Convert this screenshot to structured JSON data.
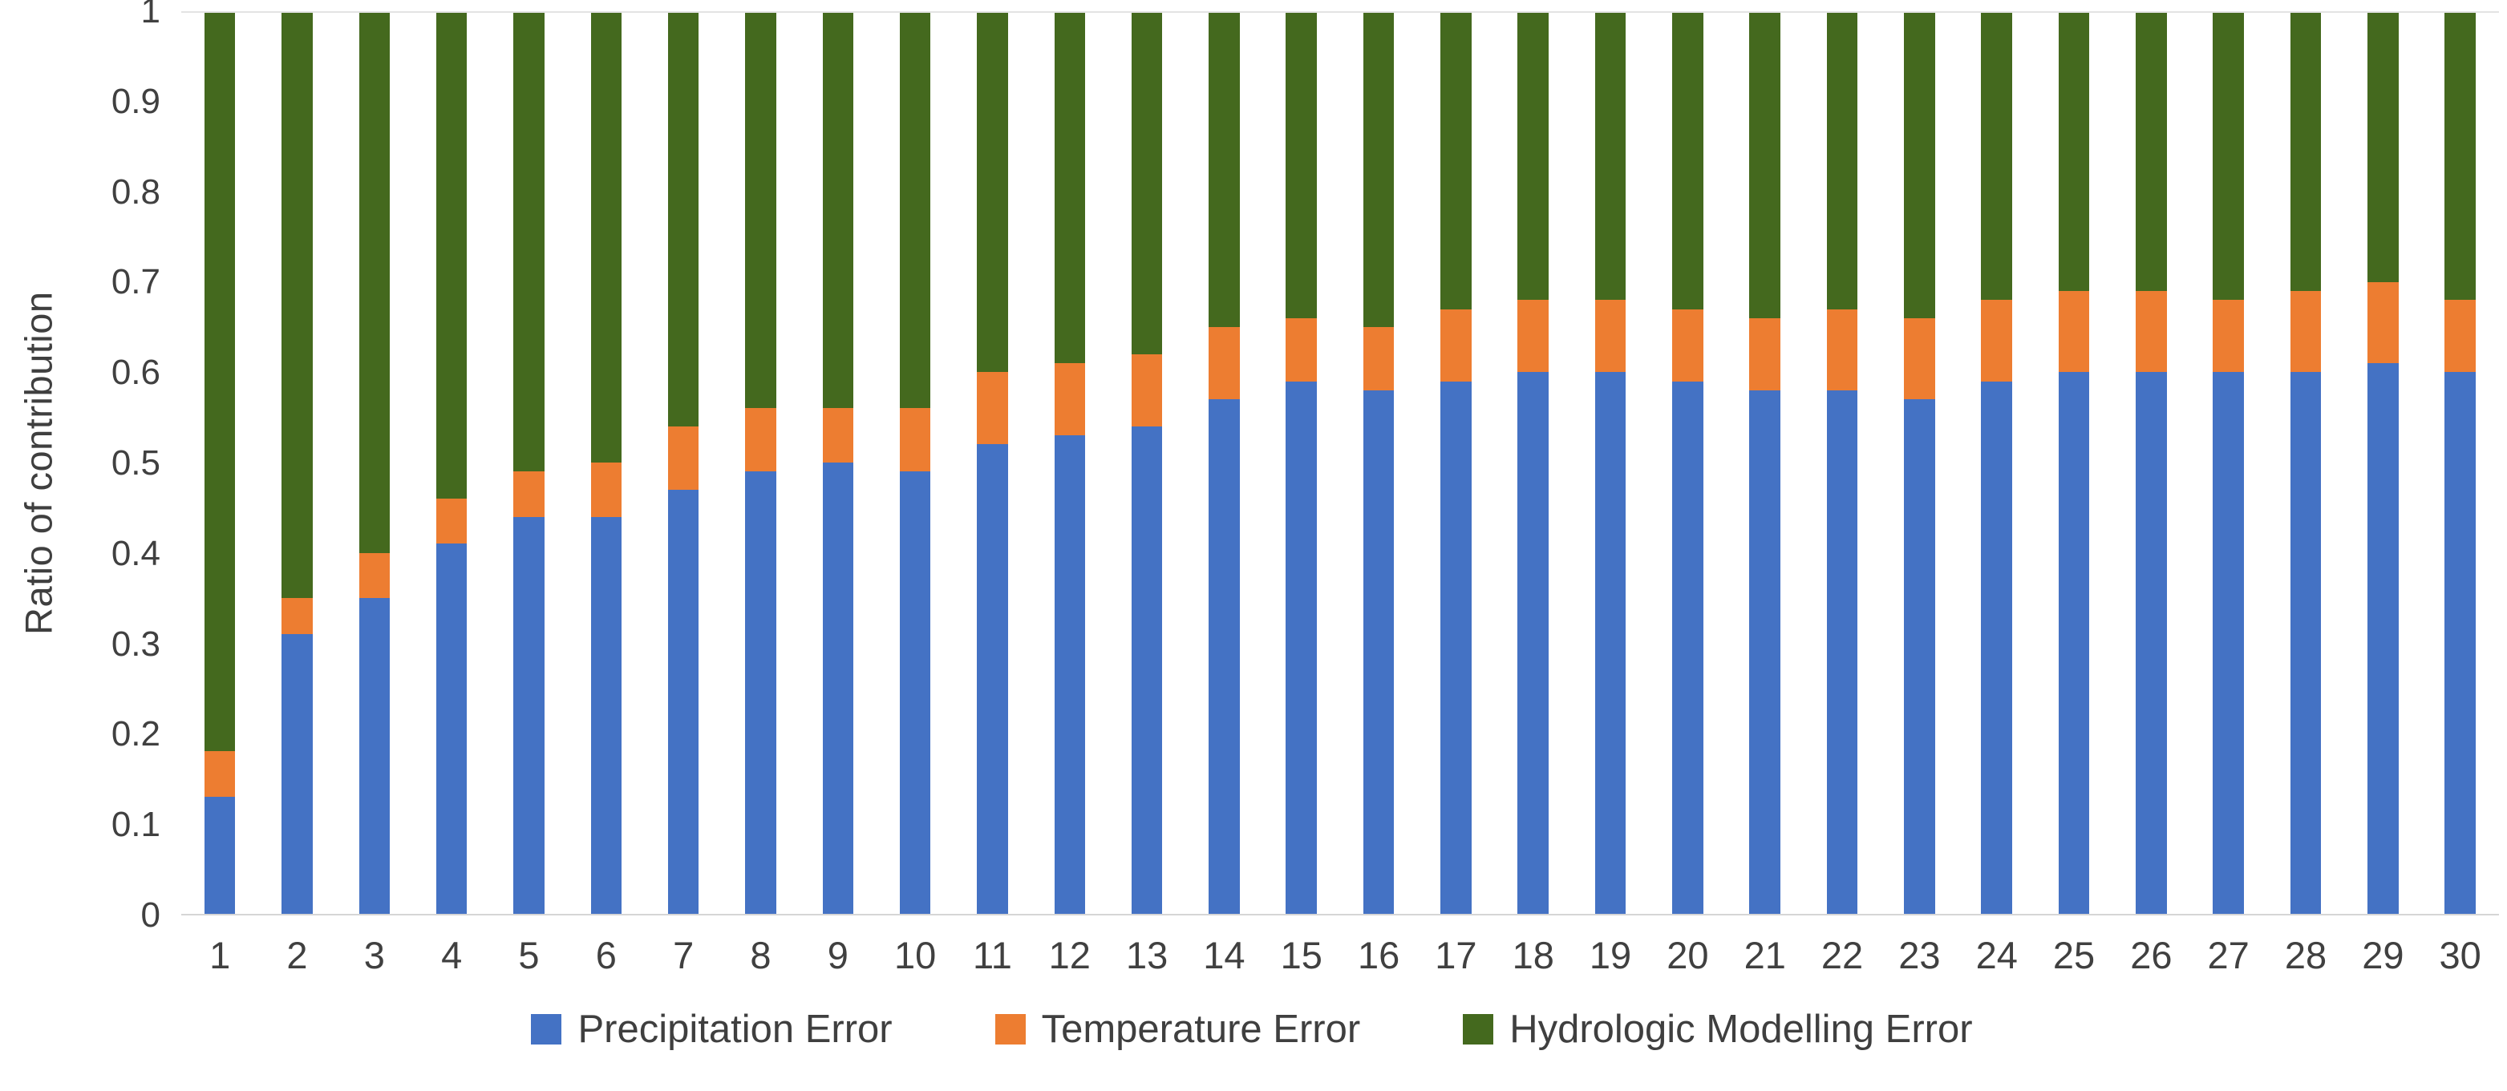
{
  "chart_data": {
    "type": "bar",
    "stacked": true,
    "title": "",
    "xlabel": "",
    "ylabel": "Ratio of contribution",
    "ylim": [
      0,
      1
    ],
    "yticks": [
      "0",
      "0.1",
      "0.2",
      "0.3",
      "0.4",
      "0.5",
      "0.6",
      "0.7",
      "0.8",
      "0.9",
      "1"
    ],
    "grid": false,
    "legend_position": "bottom",
    "categories": [
      "1",
      "2",
      "3",
      "4",
      "5",
      "6",
      "7",
      "8",
      "9",
      "10",
      "11",
      "12",
      "13",
      "14",
      "15",
      "16",
      "17",
      "18",
      "19",
      "20",
      "21",
      "22",
      "23",
      "24",
      "25",
      "26",
      "27",
      "28",
      "29",
      "30"
    ],
    "series": [
      {
        "name": "Precipitation Error",
        "color": "#4472C4",
        "values": [
          0.13,
          0.31,
          0.35,
          0.41,
          0.44,
          0.44,
          0.47,
          0.49,
          0.5,
          0.49,
          0.52,
          0.53,
          0.54,
          0.57,
          0.59,
          0.58,
          0.59,
          0.6,
          0.6,
          0.59,
          0.58,
          0.58,
          0.57,
          0.59,
          0.6,
          0.6,
          0.6,
          0.6,
          0.61,
          0.6
        ]
      },
      {
        "name": "Temperature Error",
        "color": "#ED7D31",
        "values": [
          0.05,
          0.04,
          0.05,
          0.05,
          0.05,
          0.06,
          0.07,
          0.07,
          0.06,
          0.07,
          0.08,
          0.08,
          0.08,
          0.08,
          0.07,
          0.07,
          0.08,
          0.08,
          0.08,
          0.08,
          0.08,
          0.09,
          0.09,
          0.09,
          0.09,
          0.09,
          0.08,
          0.09,
          0.09,
          0.08
        ]
      },
      {
        "name": "Hydrologic Modelling Error",
        "color": "#44691E",
        "values": [
          0.82,
          0.65,
          0.6,
          0.54,
          0.51,
          0.5,
          0.46,
          0.44,
          0.44,
          0.44,
          0.4,
          0.39,
          0.38,
          0.35,
          0.34,
          0.35,
          0.33,
          0.32,
          0.32,
          0.33,
          0.34,
          0.33,
          0.34,
          0.32,
          0.31,
          0.31,
          0.32,
          0.31,
          0.3,
          0.32
        ]
      }
    ]
  }
}
